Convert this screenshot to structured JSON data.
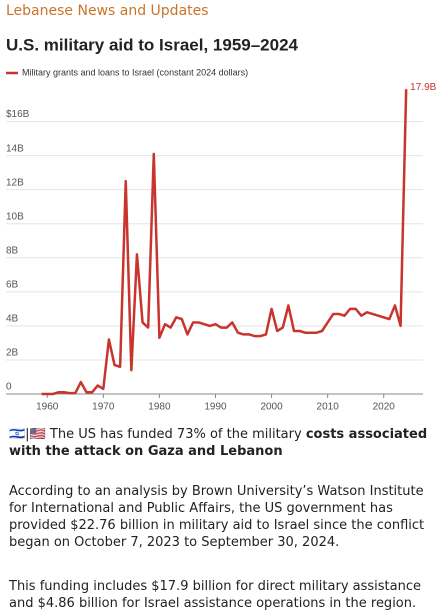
{
  "header": {
    "title": "Lebanese News and Updates"
  },
  "chart_data": {
    "type": "line",
    "title": "U.S. military aid to Israel, 1959–2024",
    "x": [
      1959,
      1960,
      1961,
      1962,
      1963,
      1964,
      1965,
      1966,
      1967,
      1968,
      1969,
      1970,
      1971,
      1972,
      1973,
      1974,
      1975,
      1976,
      1977,
      1978,
      1979,
      1980,
      1981,
      1982,
      1983,
      1984,
      1985,
      1986,
      1987,
      1988,
      1989,
      1990,
      1991,
      1992,
      1993,
      1994,
      1995,
      1996,
      1997,
      1998,
      1999,
      2000,
      2001,
      2002,
      2003,
      2004,
      2005,
      2006,
      2007,
      2008,
      2009,
      2010,
      2011,
      2012,
      2013,
      2014,
      2015,
      2016,
      2017,
      2018,
      2019,
      2020,
      2021,
      2022,
      2023,
      2024
    ],
    "series": [
      {
        "name": "Military grants and loans to Israel (constant 2024 dollars)",
        "color": "#c8352e",
        "values": [
          0,
          0,
          0,
          0.1,
          0.1,
          0.05,
          0.05,
          0.7,
          0.1,
          0.1,
          0.5,
          0.3,
          3.2,
          1.7,
          1.6,
          12.5,
          1.4,
          8.2,
          4.2,
          3.9,
          14.1,
          3.3,
          4.1,
          3.9,
          4.5,
          4.4,
          3.5,
          4.2,
          4.2,
          4.1,
          4.0,
          4.1,
          3.9,
          3.9,
          4.2,
          3.6,
          3.5,
          3.5,
          3.4,
          3.4,
          3.5,
          5.0,
          3.7,
          3.9,
          5.2,
          3.7,
          3.7,
          3.6,
          3.6,
          3.6,
          3.7,
          4.2,
          4.7,
          4.7,
          4.6,
          5.0,
          5.0,
          4.6,
          4.8,
          4.7,
          4.6,
          4.5,
          4.4,
          5.2,
          4.0,
          17.9
        ],
        "value_labels": [
          null,
          null,
          null,
          null,
          null,
          null,
          null,
          null,
          null,
          null,
          null,
          null,
          null,
          null,
          null,
          null,
          null,
          null,
          null,
          null,
          null,
          null,
          null,
          null,
          null,
          null,
          null,
          null,
          null,
          null,
          null,
          null,
          null,
          null,
          null,
          null,
          null,
          null,
          null,
          null,
          null,
          null,
          null,
          null,
          null,
          null,
          null,
          null,
          null,
          null,
          null,
          null,
          null,
          null,
          null,
          null,
          null,
          null,
          null,
          null,
          null,
          null,
          null,
          null,
          null,
          "17.9B"
        ]
      }
    ],
    "xlim": [
      1958,
      2027
    ],
    "xticks": [
      1960,
      1970,
      1980,
      1990,
      2000,
      2010,
      2020
    ],
    "ylim": [
      0,
      18.5
    ],
    "yticks": [
      0,
      {
        "value": 2,
        "label": "2B"
      },
      {
        "value": 4,
        "label": "4B"
      },
      {
        "value": 6,
        "label": "6B"
      },
      {
        "value": 8,
        "label": "8B"
      },
      {
        "value": 10,
        "label": "10B"
      },
      {
        "value": 12,
        "label": "12B"
      },
      {
        "value": 14,
        "label": "14B"
      },
      {
        "value": 16,
        "label": "$16B"
      }
    ],
    "grid": true,
    "legend": "top-left"
  },
  "caption": {
    "flags": "🇮🇱|🇺🇸",
    "text": "The US has funded 73% of the military",
    "bold": "costs associated with the attack on Gaza and Lebanon"
  },
  "paragraphs": [
    "According to an analysis by Brown University’s Watson Institute for International and Public Affairs, the US government has provided $22.76 billion in military aid to Israel since the conflict began on October 7, 2023 to September 30, 2024.",
    "This funding includes $17.9 billion for direct military assistance and $4.86 billion for Israel assistance operations in the region."
  ]
}
